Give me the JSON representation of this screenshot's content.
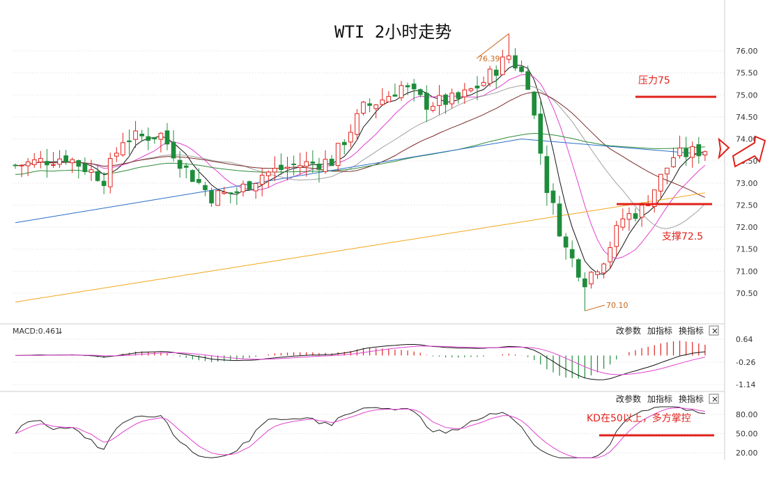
{
  "title": "WTI 2小时走势",
  "colors": {
    "up": "#e0211b",
    "down": "#1e8c3a",
    "ma5": "#111111",
    "ma10": "#e040d0",
    "ma20": "#a0a0a0",
    "ma30": "#7a2a2a",
    "ma60": "#2e8b3a",
    "ma120": "#2b6fc7",
    "ma250": "#f2a81d",
    "annot": "#e0211b",
    "grid": "#d8d8d8"
  },
  "toolbar": {
    "change_params": "改参数",
    "add_indicator": "加指标",
    "switch_indicator": "换指标",
    "close": "×"
  },
  "macd": {
    "label": "MACD:0.461",
    "arrow": "↓"
  },
  "annotations": {
    "high": "76.39",
    "low": "70.10",
    "resistance": "压力75",
    "support": "支撑72.5",
    "kd_note": "KD在50以上，多方掌控"
  },
  "chart_data": [
    {
      "type": "candlestick",
      "title": "WTI 2小时走势",
      "ylim": [
        70.0,
        77.0
      ],
      "y_ticks": [
        "76.00",
        "75.50",
        "75.00",
        "74.50",
        "74.00",
        "73.50",
        "73.00",
        "72.50",
        "72.00",
        "71.50",
        "71.00",
        "70.50"
      ],
      "grid": true,
      "high_label": 76.39,
      "low_label": 70.1,
      "resistance_level": 75.0,
      "support_level": 72.5,
      "close_points": [
        [
          0,
          73.4
        ],
        [
          8,
          73.6
        ],
        [
          14,
          73.1
        ],
        [
          17,
          74.0
        ],
        [
          23,
          74.1
        ],
        [
          27,
          73.3
        ],
        [
          31,
          72.7
        ],
        [
          35,
          72.8
        ],
        [
          39,
          73.2
        ],
        [
          44,
          73.4
        ],
        [
          50,
          73.5
        ],
        [
          55,
          74.7
        ],
        [
          58,
          74.9
        ],
        [
          61,
          75.2
        ],
        [
          65,
          74.8
        ],
        [
          70,
          74.9
        ],
        [
          74,
          75.3
        ],
        [
          78,
          75.9
        ],
        [
          81,
          75.3
        ],
        [
          84,
          72.9
        ],
        [
          87,
          71.5
        ],
        [
          90,
          70.8
        ],
        [
          93,
          71.3
        ],
        [
          96,
          72.2
        ],
        [
          99,
          72.4
        ],
        [
          104,
          73.6
        ],
        [
          110,
          73.8
        ]
      ],
      "n_candles": 110
    },
    {
      "type": "line",
      "title": "MACD",
      "value": 0.461,
      "y_ticks": [
        "0.64",
        "-0.26",
        "-1.14"
      ],
      "ylim": [
        -1.25,
        0.85
      ],
      "grid": true
    },
    {
      "type": "line",
      "title": "KD",
      "y_ticks": [
        "80.00",
        "50.00",
        "20.00"
      ],
      "ylim": [
        10,
        95
      ],
      "grid": true
    }
  ]
}
